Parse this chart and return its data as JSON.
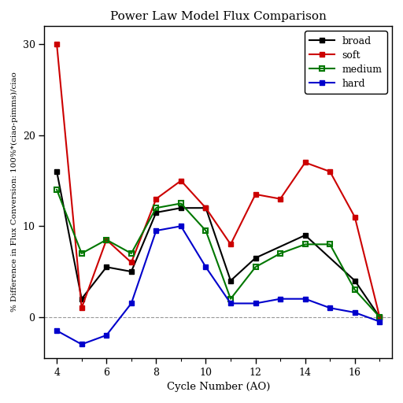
{
  "title": "Power Law Model Flux Comparison",
  "xlabel": "Cycle Number (AO)",
  "ylabel": "% Difference in Flux Conversion: 100%*(ciao-pimms)/ciao",
  "broad_x": [
    4,
    5,
    6,
    7,
    8,
    9,
    10,
    11,
    12,
    14,
    16,
    17
  ],
  "broad_y": [
    16,
    2,
    5.5,
    5,
    11.5,
    12,
    12,
    4,
    6.5,
    9,
    4,
    0
  ],
  "soft_x": [
    4,
    5,
    6,
    7,
    8,
    9,
    10,
    11,
    12,
    13,
    14,
    15,
    16,
    17
  ],
  "soft_y": [
    30,
    1,
    8.5,
    6,
    13,
    15,
    12,
    8,
    13.5,
    13,
    17,
    16,
    11,
    0
  ],
  "medium_x": [
    4,
    5,
    6,
    7,
    8,
    9,
    10,
    11,
    12,
    13,
    14,
    15,
    16,
    17
  ],
  "medium_y": [
    14,
    7,
    8.5,
    7,
    12,
    12.5,
    9.5,
    2,
    5.5,
    7,
    8,
    8,
    3,
    0
  ],
  "hard_x": [
    4,
    5,
    6,
    7,
    8,
    9,
    10,
    11,
    12,
    13,
    14,
    15,
    16,
    17
  ],
  "hard_y": [
    -1.5,
    -3,
    -2,
    1.5,
    9.5,
    10,
    5.5,
    1.5,
    1.5,
    2,
    2,
    1,
    0.5,
    -0.5
  ],
  "xlim": [
    3.5,
    17.5
  ],
  "ylim": [
    -4.5,
    32
  ],
  "yticks": [
    0,
    10,
    20,
    30
  ],
  "xticks": [
    4,
    6,
    8,
    10,
    12,
    14,
    16
  ],
  "colors": {
    "broad": "#000000",
    "soft": "#cc0000",
    "medium": "#007700",
    "hard": "#0000cc"
  },
  "bg_color": "#ffffff",
  "line_width": 1.5,
  "marker_size": 5
}
